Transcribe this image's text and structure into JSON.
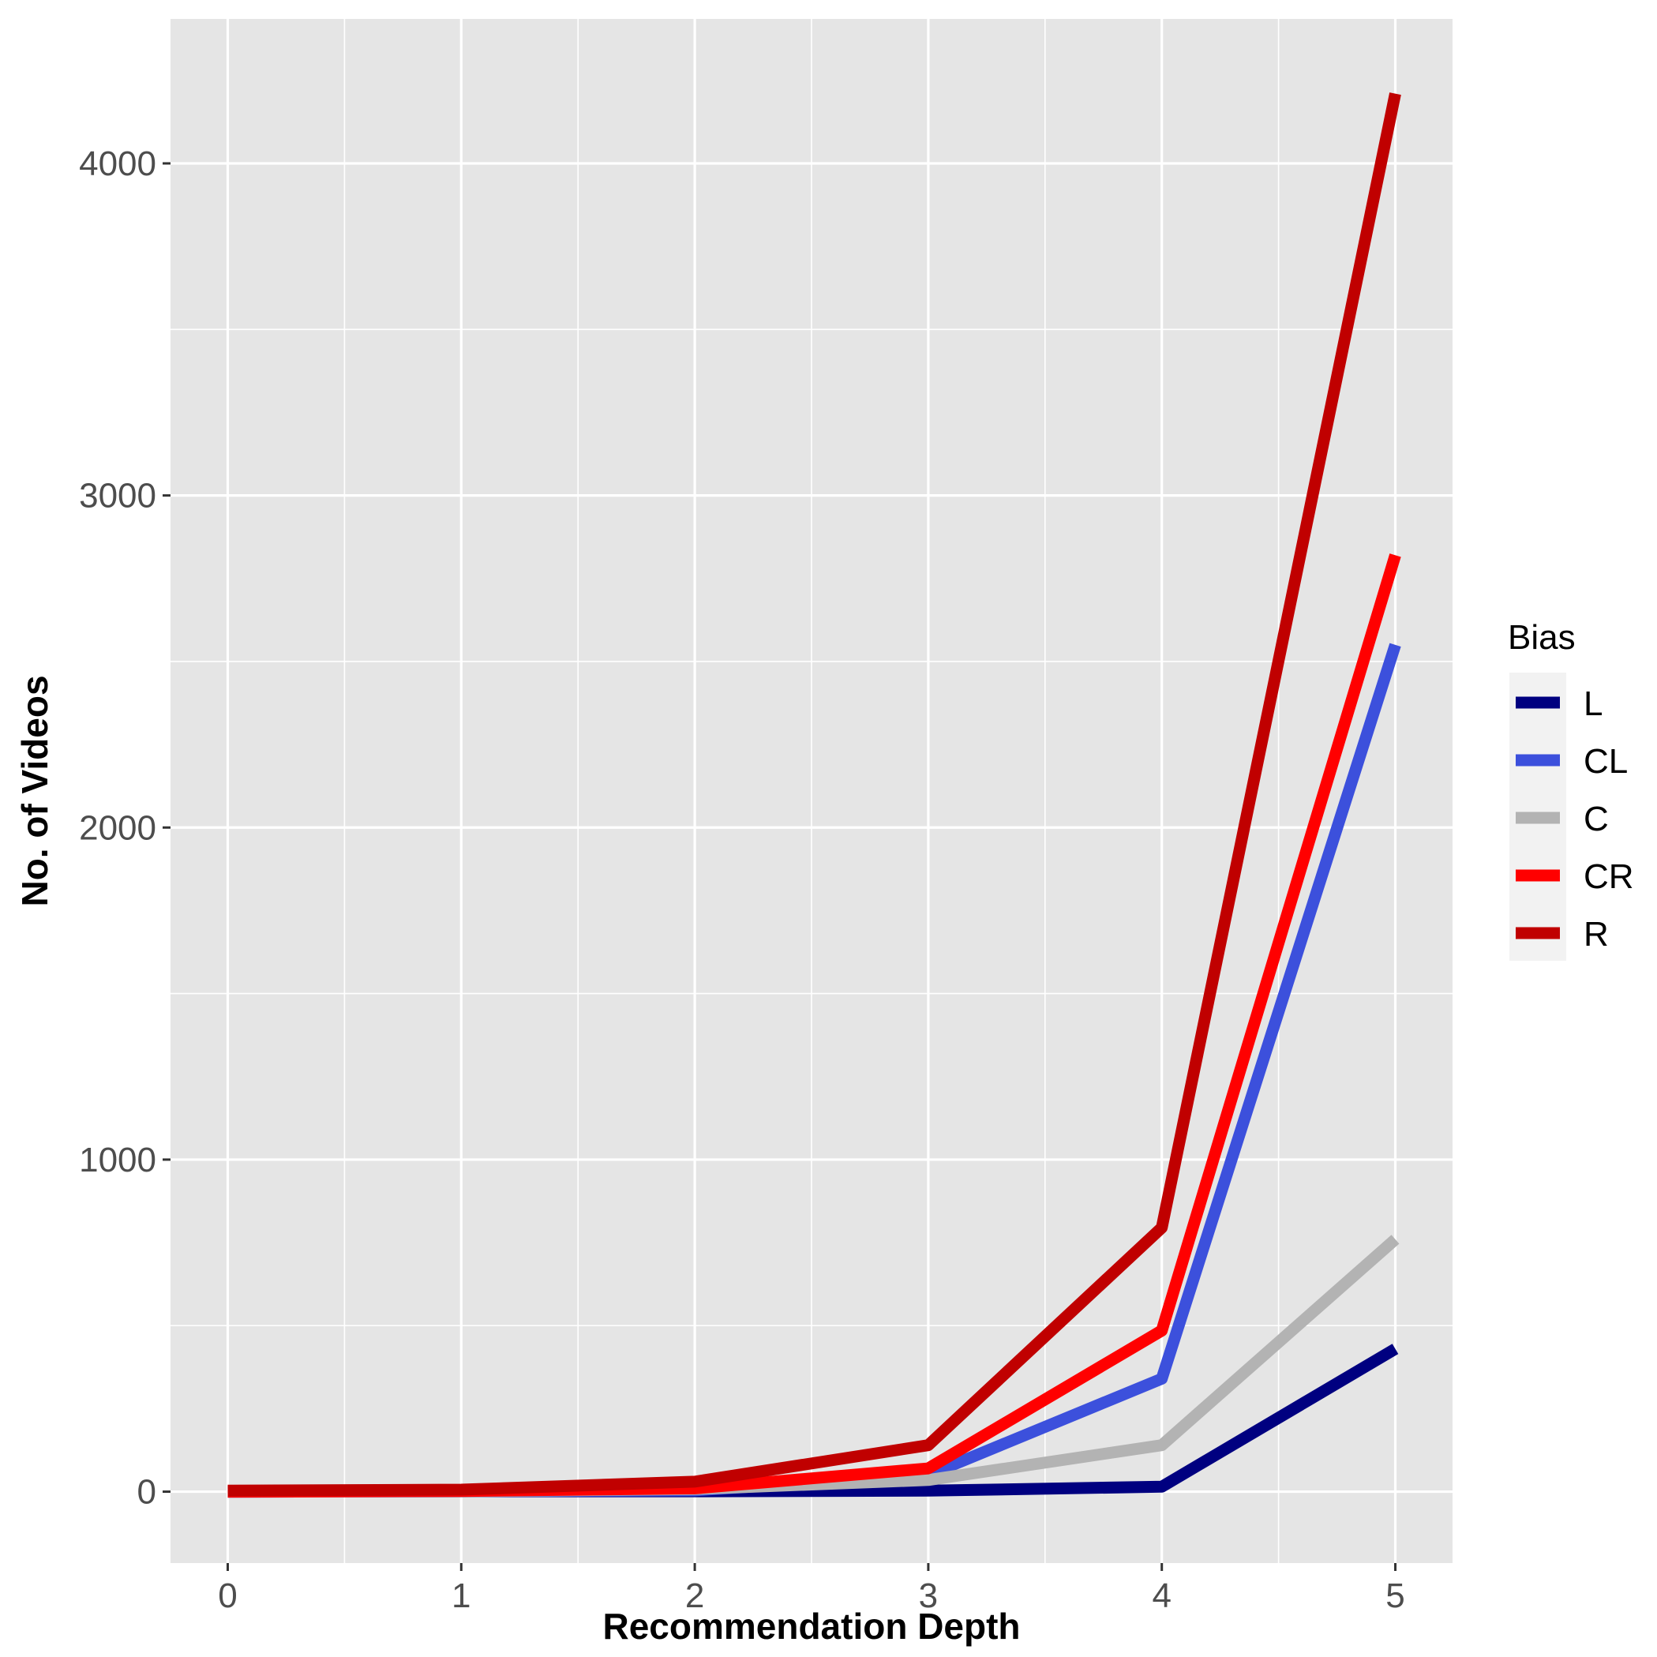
{
  "chart_data": {
    "type": "line",
    "xlabel": "Recommendation Depth",
    "ylabel": "No. of Videos",
    "x": [
      0,
      1,
      2,
      3,
      4,
      5
    ],
    "xticks": [
      "0",
      "1",
      "2",
      "3",
      "4",
      "5"
    ],
    "yticks": [
      "0",
      "1000",
      "2000",
      "3000",
      "4000"
    ],
    "ytick_values": [
      0,
      1000,
      2000,
      3000,
      4000
    ],
    "xlim": [
      -0.245,
      5.245
    ],
    "ylim": [
      -215,
      4435
    ],
    "grid": true,
    "panel_background": "#e5e5e5",
    "legend": {
      "title": "Bias",
      "position": "right"
    },
    "series": [
      {
        "name": "L",
        "color": "#000080",
        "values": [
          0,
          1,
          1,
          3,
          15,
          430
        ]
      },
      {
        "name": "CL",
        "color": "#3c50dc",
        "values": [
          0,
          1,
          4,
          50,
          340,
          2550
        ]
      },
      {
        "name": "C",
        "color": "#b3b3b3",
        "values": [
          0,
          1,
          8,
          35,
          140,
          760
        ]
      },
      {
        "name": "CR",
        "color": "#ff0000",
        "values": [
          0,
          2,
          10,
          70,
          485,
          2820
        ]
      },
      {
        "name": "R",
        "color": "#c00000",
        "values": [
          3,
          6,
          30,
          140,
          795,
          4210
        ]
      }
    ]
  }
}
